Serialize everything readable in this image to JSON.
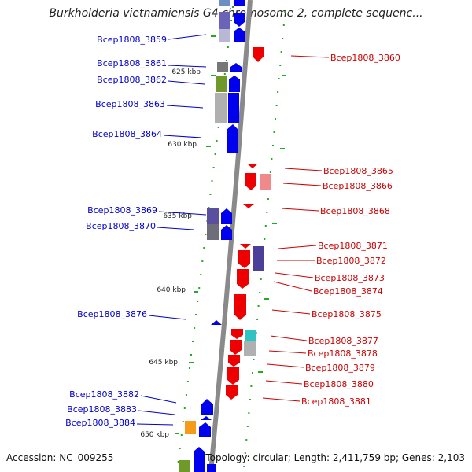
{
  "title": "Burkholderia vietnamiensis G4 chromosome 2, complete sequenc...",
  "footer": {
    "accession": "Accession: NC_009255",
    "summary": "Topology: circular; Length: 2,411,759 bp; Genes: 2,103"
  },
  "scale_labels": [
    "625 kbp",
    "630 kbp",
    "635 kbp",
    "640 kbp",
    "645 kbp",
    "650 kbp"
  ],
  "colors": {
    "forward_strand": "#0000ee",
    "reverse_strand": "#ee0000",
    "forward_label": "#0000cc",
    "reverse_label": "#cc0000",
    "backbone": "#888888",
    "tick": "#22aa22"
  },
  "forward_genes": [
    "Bcep1808_3859",
    "Bcep1808_3861",
    "Bcep1808_3862",
    "Bcep1808_3863",
    "Bcep1808_3864",
    "Bcep1808_3869",
    "Bcep1808_3870",
    "Bcep1808_3876",
    "Bcep1808_3882",
    "Bcep1808_3883",
    "Bcep1808_3884"
  ],
  "reverse_genes": [
    "Bcep1808_3860",
    "Bcep1808_3865",
    "Bcep1808_3866",
    "Bcep1808_3868",
    "Bcep1808_3871",
    "Bcep1808_3872",
    "Bcep1808_3873",
    "Bcep1808_3874",
    "Bcep1808_3875",
    "Bcep1808_3877",
    "Bcep1808_3878",
    "Bcep1808_3879",
    "Bcep1808_3880",
    "Bcep1808_3881"
  ]
}
